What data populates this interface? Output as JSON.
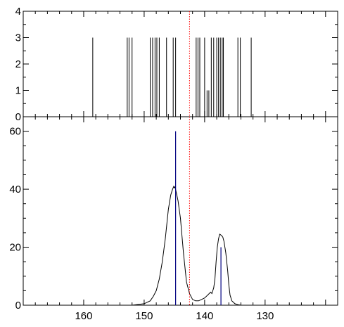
{
  "chart_data": [
    {
      "type": "bar",
      "panel": "top",
      "xlim": [
        170,
        118
      ],
      "ylim": [
        0,
        4
      ],
      "y_ticks": [
        0,
        1,
        2,
        3,
        4
      ],
      "y_tick_labels": [
        "0",
        "1",
        "2",
        "3",
        "4"
      ],
      "sticks": [
        {
          "x": 158.5,
          "y": 3
        },
        {
          "x": 152.8,
          "y": 3
        },
        {
          "x": 152.5,
          "y": 3
        },
        {
          "x": 152.0,
          "y": 3
        },
        {
          "x": 149.0,
          "y": 3
        },
        {
          "x": 148.6,
          "y": 3
        },
        {
          "x": 148.2,
          "y": 3
        },
        {
          "x": 147.9,
          "y": 3
        },
        {
          "x": 147.5,
          "y": 3
        },
        {
          "x": 146.3,
          "y": 3
        },
        {
          "x": 145.2,
          "y": 3
        },
        {
          "x": 144.8,
          "y": 3
        },
        {
          "x": 141.4,
          "y": 3
        },
        {
          "x": 141.1,
          "y": 3
        },
        {
          "x": 140.8,
          "y": 3
        },
        {
          "x": 140.0,
          "y": 3
        },
        {
          "x": 139.6,
          "y": 1
        },
        {
          "x": 139.3,
          "y": 1
        },
        {
          "x": 138.9,
          "y": 3
        },
        {
          "x": 138.5,
          "y": 3
        },
        {
          "x": 138.0,
          "y": 3
        },
        {
          "x": 137.7,
          "y": 3
        },
        {
          "x": 137.4,
          "y": 3
        },
        {
          "x": 137.1,
          "y": 3
        },
        {
          "x": 136.9,
          "y": 3
        },
        {
          "x": 134.5,
          "y": 3
        },
        {
          "x": 134.1,
          "y": 3
        },
        {
          "x": 132.3,
          "y": 3
        }
      ],
      "marker_line": {
        "x": 142.5,
        "color": "#ff0000",
        "style": "dotted"
      }
    },
    {
      "type": "line",
      "panel": "bottom",
      "xlim": [
        170,
        118
      ],
      "ylim": [
        0,
        65
      ],
      "x_ticks": [
        160,
        150,
        140,
        130
      ],
      "x_tick_labels": [
        "160",
        "150",
        "140",
        "130"
      ],
      "y_ticks": [
        0,
        20,
        40,
        60
      ],
      "y_tick_labels": [
        "0",
        "20",
        "40",
        "60"
      ],
      "series": [
        {
          "color": "#000000",
          "x": [
            161,
            152,
            150,
            149,
            148.5,
            148,
            147.5,
            147,
            146.5,
            146,
            145.6,
            145.3,
            145.1,
            145,
            144.9,
            144.7,
            144.4,
            144,
            143.5,
            143,
            142.5,
            142,
            141.5,
            141,
            140.5,
            140,
            139.5,
            139,
            138.8,
            138.5,
            138.3,
            138.1,
            137.9,
            137.7,
            137.5,
            137.2,
            137,
            136.8,
            136.5,
            136.2,
            136,
            135.8,
            135.5,
            135,
            134.5,
            134,
            133,
            131,
            128.5
          ],
          "y": [
            0,
            0,
            0.5,
            1.5,
            3,
            5,
            9,
            15,
            23,
            33,
            38,
            40,
            41,
            40.5,
            40.8,
            39,
            36,
            30,
            18,
            8,
            4,
            2,
            1.5,
            1.5,
            2,
            2.5,
            3.5,
            4.5,
            4,
            6,
            9,
            15,
            20,
            23,
            24.5,
            24,
            23.5,
            22,
            18,
            12,
            7,
            3.5,
            1.5,
            0.5,
            0.2,
            0,
            0,
            0,
            0
          ]
        }
      ],
      "markers": [
        {
          "x": 144.8,
          "y": 60,
          "color": "#000080"
        },
        {
          "x": 137.3,
          "y": 20,
          "color": "#000080"
        }
      ],
      "marker_line": {
        "x": 142.5,
        "color": "#ff0000",
        "style": "dotted"
      }
    }
  ]
}
